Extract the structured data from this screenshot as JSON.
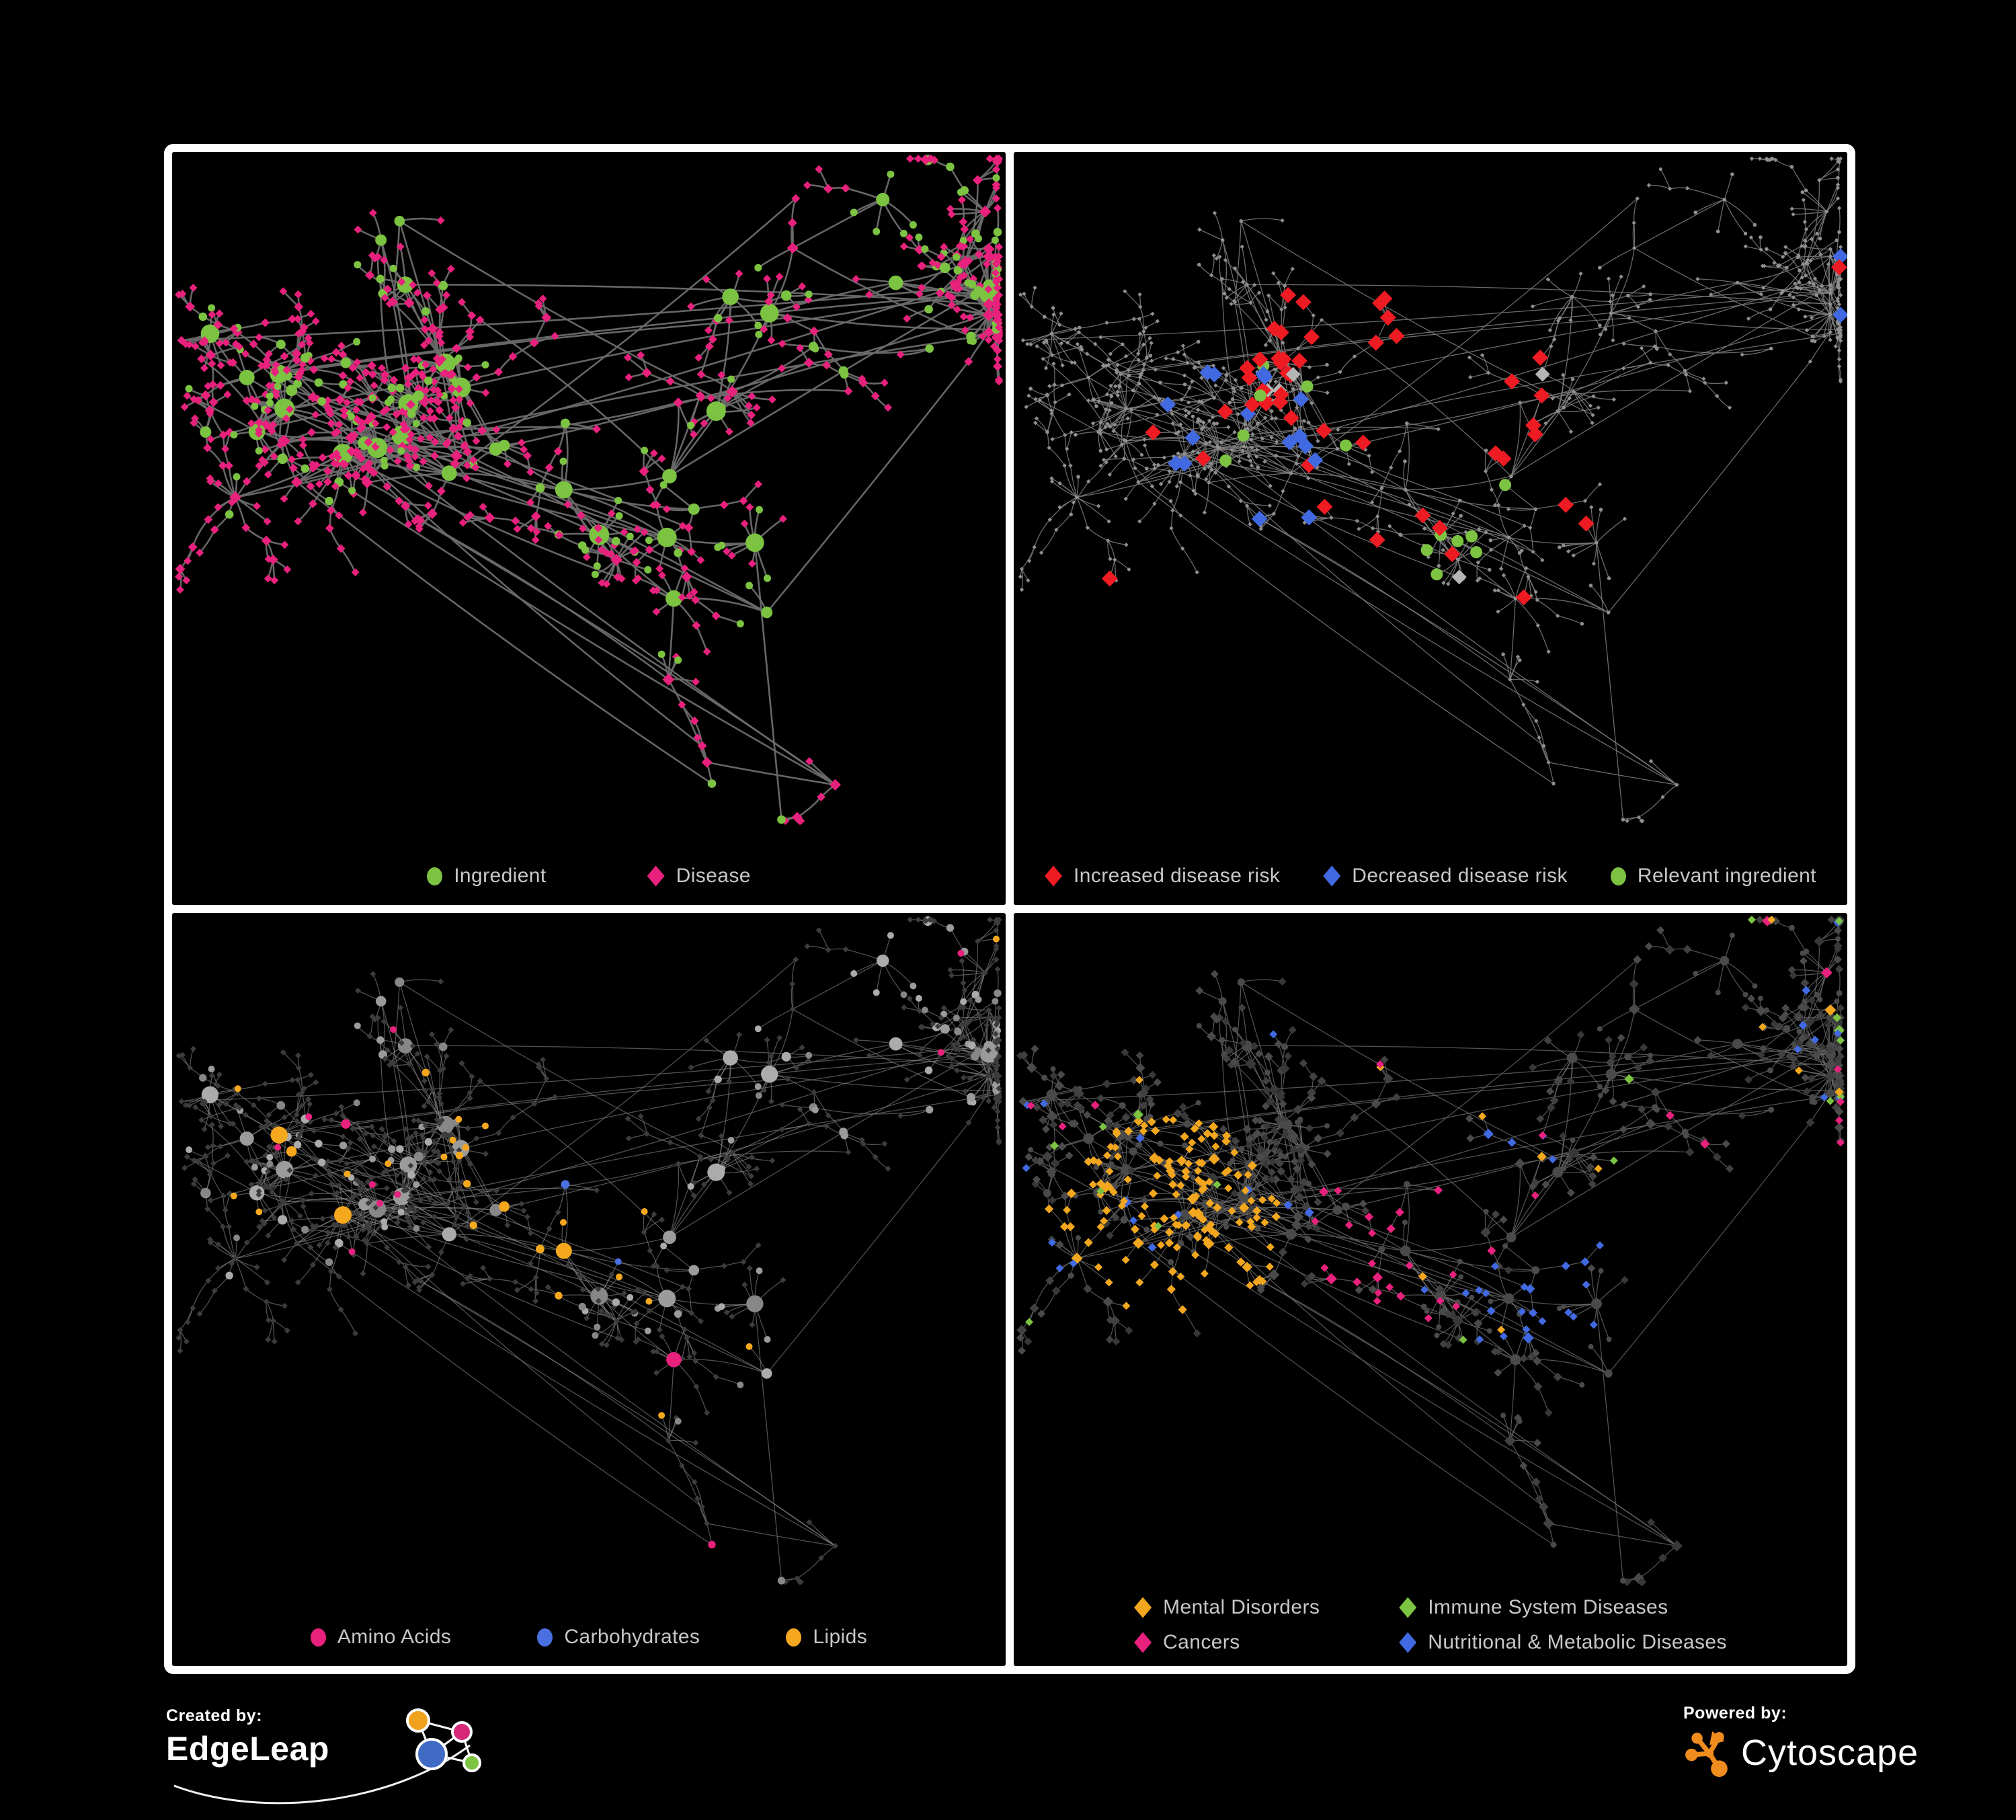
{
  "page": {
    "background": "#000000",
    "frame_color": "#ffffff",
    "legend_text_color": "#c7c7c7"
  },
  "footer": {
    "created_by_label": "Created by:",
    "edgeleap_brand": "EdgeLeap",
    "powered_by_label": "Powered by:",
    "cytoscape_brand": "Cytoscape",
    "edgeleap_colors": {
      "blue": "#3f6bc5",
      "orange": "#f0a11e",
      "pink": "#d62779",
      "green": "#7cc342"
    },
    "cytoscape_orange": "#f08c1e"
  },
  "chart_data": {
    "type": "network",
    "description": "Four views of one ingredient-disease association network: (1) node types, (2) disease-risk highlights, (3) ingredient chemical classes, (4) disease categories.",
    "layout_seed": 7,
    "hub_count": 70,
    "max_fan": 18,
    "chain_prob": 0.2,
    "cross_links": 46,
    "node_types": {
      "ingredient_shape": "circle",
      "disease_shape": "diamond"
    },
    "panels": [
      {
        "id": "ingredient-disease",
        "mode": "types",
        "legend_layout": "gap-mid",
        "legend": [
          {
            "label": "Ingredient",
            "shape": "circle",
            "color": "#7cc342"
          },
          {
            "label": "Disease",
            "shape": "diamond",
            "color": "#e8217d"
          }
        ],
        "edge": {
          "color": "#6b6b6b",
          "width": 2.6,
          "opacity": 0.95
        },
        "ingredient_color": "#7cc342",
        "disease_color": "#e8217d"
      },
      {
        "id": "disease-risk",
        "mode": "highlight",
        "legend_layout": "gap-narrow",
        "legend": [
          {
            "label": "Increased disease risk",
            "shape": "diamond",
            "color": "#ee1b23"
          },
          {
            "label": "Decreased disease risk",
            "shape": "diamond",
            "color": "#4169e1"
          },
          {
            "label": "Relevant ingredient",
            "shape": "circle",
            "color": "#7cc342"
          }
        ],
        "edge": {
          "color": "#7e7e7e",
          "width": 1.3,
          "opacity": 0.85
        },
        "dim_color": "#8f8f8f",
        "increased_color": "#ee1b23",
        "decreased_color": "#4169e1",
        "neutral_color": "#b5b5b5",
        "relevant_color": "#7cc342",
        "regions": {
          "red": {
            "x": 0.45,
            "y": 0.4,
            "r": 0.2,
            "p": 0.16,
            "scatter": 0.015
          },
          "blue": {
            "x": 0.3,
            "y": 0.38,
            "r": 0.16,
            "band": [
              0.88,
              0.94
            ]
          },
          "silver": {
            "x": 0.48,
            "y": 0.42,
            "r": 0.2,
            "band": [
              0.94,
              0.98
            ]
          },
          "green": {
            "x": 0.42,
            "y": 0.42,
            "r": 0.25,
            "band": [
              0.3,
              0.52
            ]
          }
        }
      },
      {
        "id": "ingredient-class",
        "mode": "ingredients",
        "legend_layout": "gap-wide",
        "legend": [
          {
            "label": "Amino Acids",
            "shape": "circle",
            "color": "#e8217d"
          },
          {
            "label": "Carbohydrates",
            "shape": "circle",
            "color": "#4a6fe0"
          },
          {
            "label": "Lipids",
            "shape": "circle",
            "color": "#f5a81d"
          }
        ],
        "edge": {
          "color": "#8a8a8a",
          "width": 1.25,
          "opacity": 0.6
        },
        "dim_diamond": "#3c3c3c",
        "gray_shades": [
          "#878787",
          "#9b9b9b",
          "#ababab"
        ],
        "amino_color": "#e8217d",
        "carb_color": "#4a6fe0",
        "lipid_color": "#f5a81d",
        "regions": {
          "lipid": {
            "x": 0.46,
            "y": 0.4,
            "r": 0.14,
            "p": 0.62
          },
          "lipid2": {
            "x": 0.4,
            "y": 0.57,
            "r": 0.07,
            "p": 0.5
          },
          "lipid_scatter": 0.04,
          "carb": {
            "x": 0.46,
            "y": 0.4,
            "r": 0.13,
            "band": [
              0.62,
              0.74
            ]
          },
          "amino_band": [
            0.88,
            0.945
          ]
        }
      },
      {
        "id": "disease-class",
        "mode": "diseases",
        "legend_layout": "grid2",
        "legend": [
          {
            "label": "Mental Disorders",
            "shape": "diamond",
            "color": "#f2a71e"
          },
          {
            "label": "Immune System Diseases",
            "shape": "diamond",
            "color": "#7cc342"
          },
          {
            "label": "Cancers",
            "shape": "diamond",
            "color": "#e8217d"
          },
          {
            "label": "Nutritional & Metabolic Diseases",
            "shape": "diamond",
            "color": "#4169e1"
          }
        ],
        "edge": {
          "color": "#6f6f6f",
          "width": 1.25,
          "opacity": 0.75
        },
        "dim_circle": "#4a4a4a",
        "dark_shades": [
          "#383838",
          "#414141",
          "#4a4a4a"
        ],
        "mental_color": "#f2a71e",
        "immune_color": "#7cc342",
        "cancer_color": "#e8217d",
        "metabolic_color": "#4169e1",
        "regions": {
          "mental": {
            "x": 0.19,
            "y": 0.46,
            "r": 0.13,
            "p": 0.85,
            "scatter": 0.015
          },
          "cancer": {
            "x": 0.47,
            "y": 0.47,
            "r": 0.11,
            "p": 0.6,
            "scatter_band": [
              0.015,
              0.035
            ]
          },
          "metabolic": {
            "x": 0.64,
            "y": 0.55,
            "r": 0.085,
            "p": 0.85,
            "scatter_band": [
              0.8,
              0.875
            ]
          },
          "immune_band": [
            0.945,
            0.963
          ]
        }
      }
    ]
  }
}
